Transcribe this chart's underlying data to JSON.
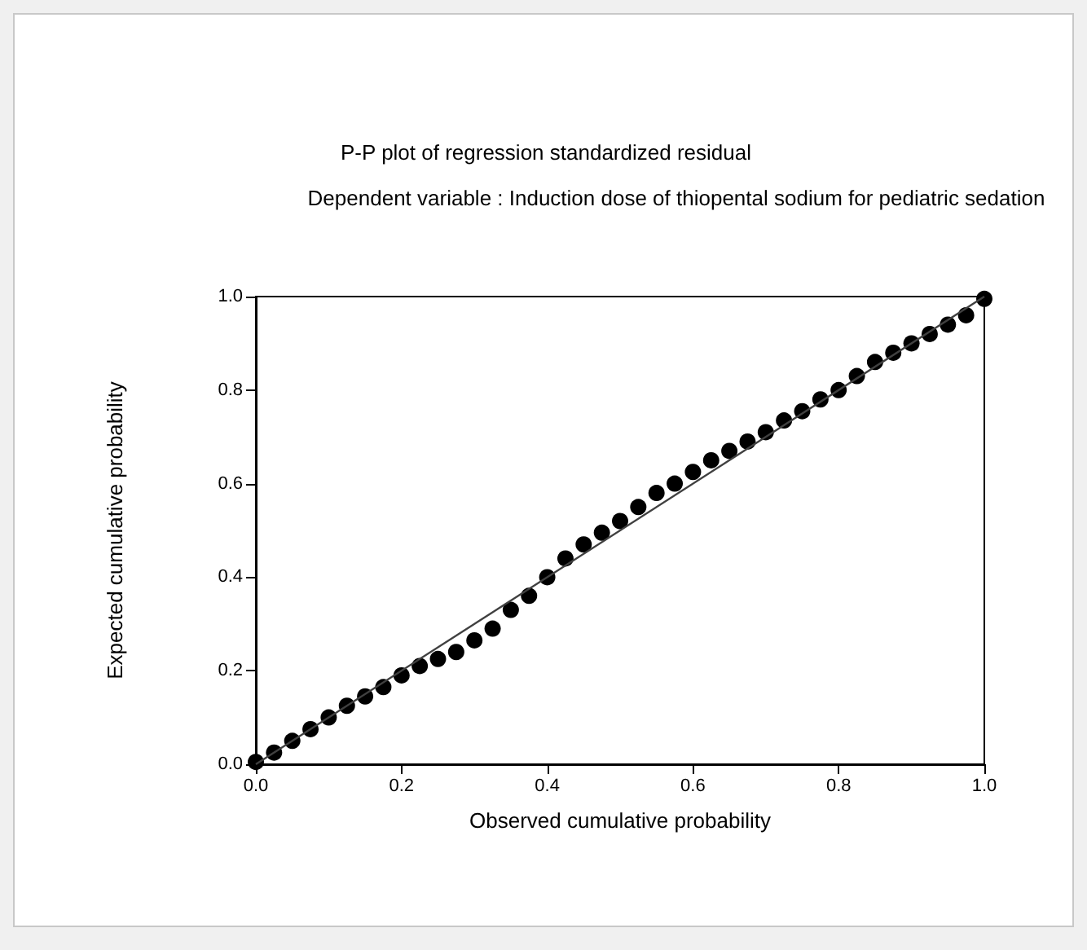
{
  "chart_data": {
    "type": "scatter",
    "title": "P-P plot of regression standardized residual",
    "subtitle": "Dependent variable : Induction dose of thiopental sodium for pediatric sedation",
    "xlabel": "Observed cumulative probability",
    "ylabel": "Expected cumulative probability",
    "xlim": [
      0,
      1
    ],
    "ylim": [
      0,
      1
    ],
    "xticks": [
      {
        "value": 0,
        "label": "0.0"
      },
      {
        "value": 0.2,
        "label": "0.2"
      },
      {
        "value": 0.4,
        "label": "0.4"
      },
      {
        "value": 0.6,
        "label": "0.6"
      },
      {
        "value": 0.8,
        "label": "0.8"
      },
      {
        "value": 1,
        "label": "1.0"
      }
    ],
    "yticks": [
      {
        "value": 0,
        "label": "0.0"
      },
      {
        "value": 0.2,
        "label": "0.2"
      },
      {
        "value": 0.4,
        "label": "0.4"
      },
      {
        "value": 0.6,
        "label": "0.6"
      },
      {
        "value": 0.8,
        "label": "0.8"
      },
      {
        "value": 1,
        "label": "1.0"
      }
    ],
    "grid": false,
    "marker": "circle",
    "series": [
      {
        "color": "#000000",
        "x": [
          0,
          0.025,
          0.05,
          0.075,
          0.1,
          0.125,
          0.15,
          0.175,
          0.2,
          0.225,
          0.25,
          0.275,
          0.3,
          0.325,
          0.35,
          0.375,
          0.4,
          0.425,
          0.45,
          0.475,
          0.5,
          0.525,
          0.55,
          0.575,
          0.6,
          0.625,
          0.65,
          0.675,
          0.7,
          0.725,
          0.75,
          0.775,
          0.8,
          0.825,
          0.85,
          0.875,
          0.9,
          0.925,
          0.95,
          0.975,
          1.0
        ],
        "values": [
          0.005,
          0.025,
          0.05,
          0.075,
          0.1,
          0.125,
          0.145,
          0.165,
          0.19,
          0.21,
          0.225,
          0.24,
          0.265,
          0.29,
          0.33,
          0.36,
          0.4,
          0.44,
          0.47,
          0.495,
          0.52,
          0.55,
          0.58,
          0.6,
          0.625,
          0.65,
          0.67,
          0.69,
          0.71,
          0.735,
          0.755,
          0.78,
          0.8,
          0.83,
          0.86,
          0.88,
          0.9,
          0.92,
          0.94,
          0.96,
          0.995
        ]
      },
      {
        "type": "line",
        "color": "#404040",
        "x": [
          0,
          1
        ],
        "values": [
          0,
          1
        ],
        "marker": "none",
        "line_style": "solid"
      }
    ]
  }
}
